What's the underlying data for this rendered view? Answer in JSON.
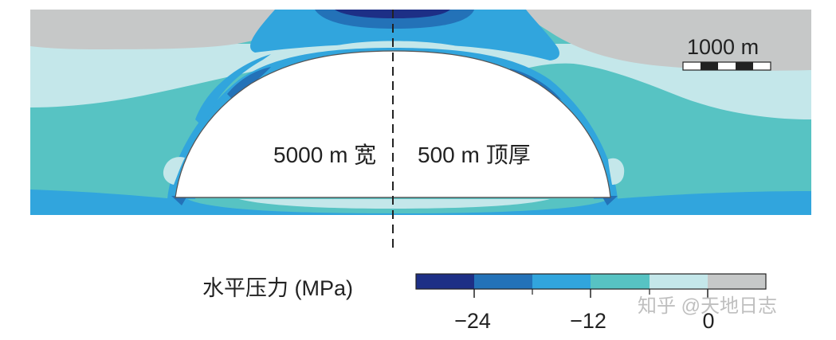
{
  "colors": {
    "level_-30_-24": "#1d2f86",
    "level_-24_-18": "#2372b8",
    "level_-18_-12": "#31a5dd",
    "level_-12_-6": "#57c3c3",
    "level_-6_0": "#c4e7ea",
    "level_0_6": "#c6c8c8",
    "cavity": "#ffffff",
    "text": "#222222"
  },
  "scale_bar": {
    "label": "1000 m"
  },
  "annotations": {
    "width_label": "5000 m 宽",
    "thickness_label": "500 m 顶厚"
  },
  "legend": {
    "title": "水平压力 (MPa)",
    "ticks": [
      "−24",
      "−12",
      "0"
    ]
  },
  "watermark": "知乎 @天地日志"
}
